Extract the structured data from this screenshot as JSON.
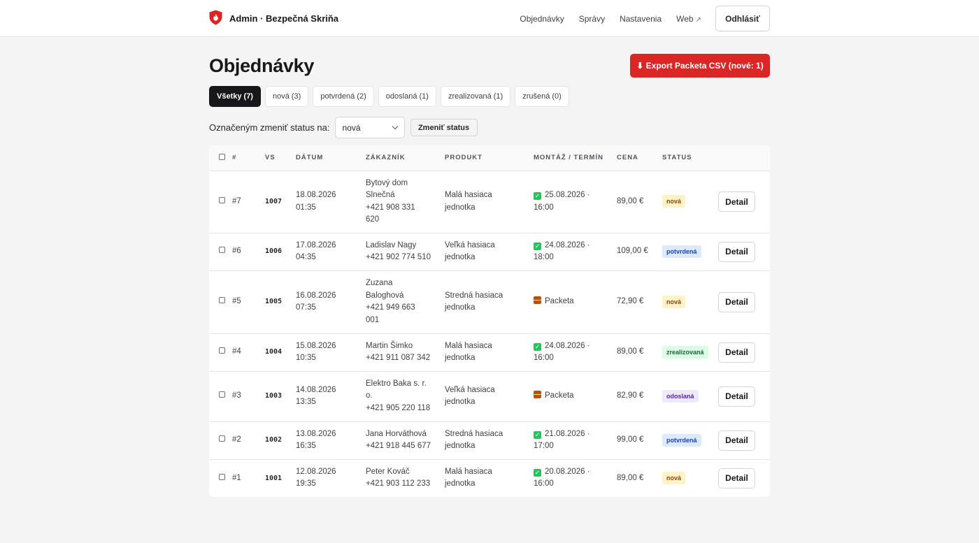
{
  "header": {
    "brand": "Admin · Bezpečná Skriňa",
    "nav": [
      "Objednávky",
      "Správy",
      "Nastavenia",
      "Web"
    ],
    "logout": "Odhlásiť"
  },
  "page": {
    "title": "Objednávky",
    "export_label": "⬇ Export Packeta CSV (nové: 1)"
  },
  "filters": [
    {
      "label": "Všetky (7)",
      "active": true
    },
    {
      "label": "nová (3)",
      "active": false
    },
    {
      "label": "potvrdená (2)",
      "active": false
    },
    {
      "label": "odoslaná (1)",
      "active": false
    },
    {
      "label": "zrealizovaná (1)",
      "active": false
    },
    {
      "label": "zrušená (0)",
      "active": false
    }
  ],
  "bulk": {
    "label": "Označeným zmeniť status na:",
    "selected": "nová",
    "apply": "Zmeniť status"
  },
  "table": {
    "columns": [
      "",
      "#",
      "VS",
      "DÁTUM",
      "ZÁKAZNÍK",
      "PRODUKT",
      "MONTÁŽ / TERMÍN",
      "CENA",
      "STATUS",
      ""
    ],
    "detail_label": "Detail",
    "rows": [
      {
        "num": "#7",
        "vs": "1007",
        "date": "18.08.2026",
        "time": "01:35",
        "customer_lines": [
          "Bytový dom",
          "Slnečná",
          "+421 908 331",
          "620"
        ],
        "product_lines": [
          "Malá hasiaca",
          "jednotka"
        ],
        "term_type": "ok",
        "term_lines": [
          "25.08.2026 ·",
          "16:00"
        ],
        "price": "89,00 €",
        "status": "nová"
      },
      {
        "num": "#6",
        "vs": "1006",
        "date": "17.08.2026",
        "time": "04:35",
        "customer_lines": [
          "Ladislav Nagy",
          "+421 902 774 510"
        ],
        "product_lines": [
          "Veľká hasiaca",
          "jednotka"
        ],
        "term_type": "ok",
        "term_lines": [
          "24.08.2026 ·",
          "18:00"
        ],
        "price": "109,00 €",
        "status": "potvrdená"
      },
      {
        "num": "#5",
        "vs": "1005",
        "date": "16.08.2026",
        "time": "07:35",
        "customer_lines": [
          "Zuzana",
          "Baloghová",
          "+421 949 663",
          "001"
        ],
        "product_lines": [
          "Stredná hasiaca",
          "jednotka"
        ],
        "term_type": "pkg",
        "term_lines": [
          "Packeta"
        ],
        "price": "72,90 €",
        "status": "nová"
      },
      {
        "num": "#4",
        "vs": "1004",
        "date": "15.08.2026",
        "time": "10:35",
        "customer_lines": [
          "Martin Šimko",
          "+421 911 087 342"
        ],
        "product_lines": [
          "Malá hasiaca",
          "jednotka"
        ],
        "term_type": "ok",
        "term_lines": [
          "24.08.2026 ·",
          "16:00"
        ],
        "price": "89,00 €",
        "status": "zrealizovaná"
      },
      {
        "num": "#3",
        "vs": "1003",
        "date": "14.08.2026",
        "time": "13:35",
        "customer_lines": [
          "Elektro Baka s. r.",
          "o.",
          "+421 905 220 118"
        ],
        "product_lines": [
          "Veľká hasiaca",
          "jednotka"
        ],
        "term_type": "pkg",
        "term_lines": [
          "Packeta"
        ],
        "price": "82,90 €",
        "status": "odoslaná"
      },
      {
        "num": "#2",
        "vs": "1002",
        "date": "13.08.2026",
        "time": "16:35",
        "customer_lines": [
          "Jana Horváthová",
          "+421 918 445 677"
        ],
        "product_lines": [
          "Stredná hasiaca",
          "jednotka"
        ],
        "term_type": "ok",
        "term_lines": [
          "21.08.2026 ·",
          "17:00"
        ],
        "price": "99,00 €",
        "status": "potvrdená"
      },
      {
        "num": "#1",
        "vs": "1001",
        "date": "12.08.2026",
        "time": "19:35",
        "customer_lines": [
          "Peter Kováč",
          "+421 903 112 233"
        ],
        "product_lines": [
          "Malá hasiaca",
          "jednotka"
        ],
        "term_type": "ok",
        "term_lines": [
          "20.08.2026 ·",
          "16:00"
        ],
        "price": "89,00 €",
        "status": "nová"
      }
    ]
  },
  "status_colors": {
    "nová": {
      "bg": "#fef3c7",
      "fg": "#92400e"
    },
    "potvrdená": {
      "bg": "#dbeafe",
      "fg": "#1e40af"
    },
    "odoslaná": {
      "bg": "#ede9fe",
      "fg": "#5b21b6"
    },
    "zrealizovaná": {
      "bg": "#dcfce7",
      "fg": "#166534"
    },
    "zrušená": {
      "bg": "#fee2e2",
      "fg": "#991b1b"
    }
  },
  "colors": {
    "accent": "#dc2626",
    "dark": "#18181b"
  }
}
